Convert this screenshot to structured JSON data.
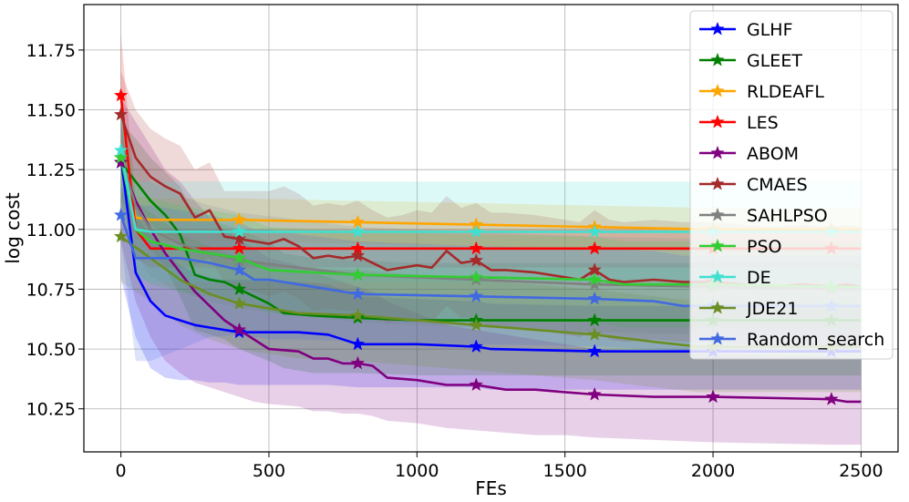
{
  "chart_data": {
    "type": "line",
    "title": "",
    "xlabel": "FEs",
    "ylabel": "log cost",
    "xlim": [
      -125,
      2625
    ],
    "ylim": [
      10.07,
      11.94
    ],
    "xticks": [
      0,
      500,
      1000,
      1500,
      2000,
      2500
    ],
    "yticks": [
      10.25,
      10.5,
      10.75,
      11.0,
      11.25,
      11.5,
      11.75
    ],
    "xtick_labels": [
      "0",
      "500",
      "1000",
      "1500",
      "2000",
      "2500"
    ],
    "ytick_labels": [
      "10.25",
      "10.50",
      "10.75",
      "11.00",
      "11.25",
      "11.50",
      "11.75"
    ],
    "grid": true,
    "legend_position": "top-right",
    "marker": "star",
    "marker_x": [
      0,
      400,
      800,
      1200,
      1600,
      2000,
      2400
    ],
    "series": [
      {
        "name": "GLHF",
        "color": "#0000ff",
        "x": [
          0,
          50,
          100,
          150,
          200,
          250,
          300,
          350,
          400,
          500,
          600,
          700,
          800,
          1000,
          1200,
          1250,
          1600,
          2000,
          2400,
          2500
        ],
        "values": [
          11.3,
          10.82,
          10.7,
          10.64,
          10.62,
          10.6,
          10.59,
          10.58,
          10.57,
          10.57,
          10.57,
          10.56,
          10.52,
          10.52,
          10.51,
          10.5,
          10.49,
          10.49,
          10.49,
          10.49
        ],
        "lower": [
          10.8,
          10.55,
          10.42,
          10.38,
          10.37,
          10.37,
          10.36,
          10.36,
          10.35,
          10.35,
          10.35,
          10.35,
          10.34,
          10.34,
          10.34,
          10.33,
          10.33,
          10.33,
          10.33,
          10.33
        ],
        "upper": [
          11.45,
          11.05,
          10.98,
          10.9,
          10.85,
          10.82,
          10.8,
          10.79,
          10.79,
          10.79,
          10.78,
          10.77,
          10.72,
          10.71,
          10.7,
          10.69,
          10.68,
          10.68,
          10.68,
          10.68
        ]
      },
      {
        "name": "GLEET",
        "color": "#008000",
        "x": [
          0,
          50,
          100,
          150,
          200,
          250,
          300,
          350,
          400,
          500,
          550,
          650,
          800,
          1000,
          1200,
          1600,
          2000,
          2400,
          2500
        ],
        "values": [
          11.28,
          11.2,
          11.12,
          11.06,
          10.98,
          10.81,
          10.79,
          10.78,
          10.75,
          10.69,
          10.65,
          10.64,
          10.63,
          10.62,
          10.62,
          10.62,
          10.62,
          10.62,
          10.62
        ],
        "lower": [
          11.12,
          11.02,
          10.92,
          10.84,
          10.72,
          10.58,
          10.56,
          10.54,
          10.5,
          10.45,
          10.42,
          10.4,
          10.4,
          10.39,
          10.39,
          10.39,
          10.39,
          10.39,
          10.39
        ],
        "upper": [
          11.45,
          11.38,
          11.3,
          11.24,
          11.18,
          11.06,
          11.04,
          11.02,
          11.0,
          10.95,
          10.9,
          10.88,
          10.87,
          10.86,
          10.86,
          10.86,
          10.86,
          10.86,
          10.86
        ]
      },
      {
        "name": "RLDEAFL",
        "color": "#ffa500",
        "x": [
          0,
          50,
          100,
          400,
          800,
          1200,
          1600,
          2000,
          2400,
          2500
        ],
        "values": [
          11.3,
          11.05,
          11.04,
          11.04,
          11.03,
          11.02,
          11.01,
          11.0,
          11.0,
          11.0
        ],
        "lower": [
          11.2,
          10.96,
          10.95,
          10.95,
          10.94,
          10.93,
          10.92,
          10.91,
          10.91,
          10.91
        ],
        "upper": [
          11.4,
          11.14,
          11.13,
          11.13,
          11.12,
          11.11,
          11.1,
          11.09,
          11.09,
          11.09
        ]
      },
      {
        "name": "LES",
        "color": "#ff0000",
        "x": [
          0,
          50,
          100,
          150,
          400,
          800,
          1200,
          1600,
          2000,
          2400,
          2500
        ],
        "values": [
          11.56,
          11.0,
          10.92,
          10.92,
          10.92,
          10.92,
          10.92,
          10.92,
          10.92,
          10.92,
          10.92
        ],
        "lower": [
          11.3,
          10.88,
          10.84,
          10.84,
          10.84,
          10.84,
          10.84,
          10.84,
          10.84,
          10.84,
          10.84
        ],
        "upper": [
          11.82,
          11.12,
          11.0,
          11.0,
          11.0,
          11.0,
          11.0,
          11.0,
          11.0,
          11.0,
          11.0
        ]
      },
      {
        "name": "ABOM",
        "color": "#800080",
        "x": [
          0,
          50,
          100,
          150,
          200,
          250,
          300,
          350,
          400,
          450,
          500,
          600,
          650,
          700,
          750,
          800,
          850,
          900,
          1000,
          1100,
          1200,
          1300,
          1400,
          1500,
          1600,
          1800,
          2000,
          2400,
          2450,
          2500
        ],
        "values": [
          11.28,
          11.12,
          11.0,
          10.9,
          10.82,
          10.74,
          10.68,
          10.62,
          10.58,
          10.54,
          10.5,
          10.49,
          10.46,
          10.46,
          10.44,
          10.44,
          10.43,
          10.38,
          10.37,
          10.35,
          10.35,
          10.33,
          10.33,
          10.32,
          10.31,
          10.3,
          10.3,
          10.29,
          10.28,
          10.28
        ],
        "lower": [
          10.95,
          10.7,
          10.55,
          10.45,
          10.4,
          10.36,
          10.34,
          10.32,
          10.3,
          10.28,
          10.27,
          10.26,
          10.24,
          10.24,
          10.23,
          10.23,
          10.22,
          10.2,
          10.19,
          10.17,
          10.16,
          10.15,
          10.14,
          10.14,
          10.13,
          10.12,
          10.11,
          10.1,
          10.1,
          10.1
        ],
        "upper": [
          11.55,
          11.45,
          11.35,
          11.25,
          11.2,
          11.12,
          11.05,
          11.0,
          10.96,
          10.92,
          10.88,
          10.85,
          10.82,
          10.8,
          10.78,
          10.76,
          10.74,
          10.7,
          10.65,
          10.6,
          10.58,
          10.56,
          10.54,
          10.52,
          10.5,
          10.49,
          10.48,
          10.47,
          10.46,
          10.46
        ]
      },
      {
        "name": "CMAES",
        "color": "#a52a2a",
        "x": [
          0,
          50,
          100,
          150,
          200,
          250,
          300,
          350,
          400,
          450,
          500,
          550,
          600,
          650,
          700,
          750,
          800,
          850,
          900,
          950,
          1000,
          1050,
          1100,
          1150,
          1200,
          1250,
          1300,
          1400,
          1500,
          1550,
          1600,
          1650,
          1700,
          1800,
          1900,
          2000,
          2100,
          2200,
          2300,
          2400,
          2450,
          2500
        ],
        "values": [
          11.48,
          11.3,
          11.22,
          11.18,
          11.15,
          11.05,
          11.08,
          10.97,
          10.96,
          10.95,
          10.94,
          10.96,
          10.93,
          10.88,
          10.89,
          10.88,
          10.89,
          10.86,
          10.83,
          10.84,
          10.85,
          10.84,
          10.91,
          10.86,
          10.87,
          10.83,
          10.83,
          10.82,
          10.8,
          10.79,
          10.83,
          10.79,
          10.78,
          10.79,
          10.78,
          10.78,
          10.77,
          10.76,
          10.77,
          10.76,
          10.77,
          10.76
        ],
        "lower": [
          11.3,
          11.1,
          11.02,
          10.98,
          10.95,
          10.85,
          10.88,
          10.78,
          10.76,
          10.74,
          10.72,
          10.74,
          10.71,
          10.66,
          10.67,
          10.66,
          10.66,
          10.64,
          10.61,
          10.62,
          10.62,
          10.61,
          10.68,
          10.63,
          10.63,
          10.59,
          10.59,
          10.58,
          10.56,
          10.55,
          10.58,
          10.54,
          10.53,
          10.54,
          10.53,
          10.53,
          10.52,
          10.51,
          10.52,
          10.51,
          10.52,
          10.51
        ],
        "upper": [
          11.66,
          11.5,
          11.42,
          11.38,
          11.35,
          11.25,
          11.28,
          11.16,
          11.16,
          11.16,
          11.16,
          11.18,
          11.15,
          11.1,
          11.11,
          11.1,
          11.12,
          11.08,
          11.05,
          11.06,
          11.08,
          11.07,
          11.14,
          11.09,
          11.11,
          11.07,
          11.07,
          11.06,
          11.04,
          11.03,
          11.08,
          11.04,
          11.03,
          11.04,
          11.03,
          11.03,
          11.02,
          11.01,
          11.02,
          11.01,
          11.02,
          11.01
        ]
      },
      {
        "name": "SAHLPSO",
        "color": "#808080",
        "x": [
          0,
          50,
          100,
          200,
          300,
          400,
          600,
          800,
          1200,
          1600,
          2000,
          2400,
          2500
        ],
        "values": [
          11.3,
          11.1,
          11.0,
          10.94,
          10.9,
          10.87,
          10.84,
          10.81,
          10.79,
          10.77,
          10.76,
          10.75,
          10.75
        ],
        "lower": [
          11.1,
          10.9,
          10.8,
          10.74,
          10.7,
          10.67,
          10.64,
          10.61,
          10.59,
          10.57,
          10.56,
          10.55,
          10.55
        ],
        "upper": [
          11.5,
          11.3,
          11.2,
          11.14,
          11.1,
          11.07,
          11.04,
          11.01,
          10.99,
          10.97,
          10.96,
          10.95,
          10.95
        ]
      },
      {
        "name": "PSO",
        "color": "#32cd32",
        "x": [
          0,
          50,
          100,
          200,
          300,
          400,
          500,
          800,
          1200,
          1600,
          1700,
          2000,
          2400,
          2500
        ],
        "values": [
          11.3,
          11.0,
          10.95,
          10.92,
          10.9,
          10.88,
          10.83,
          10.81,
          10.8,
          10.79,
          10.77,
          10.77,
          10.76,
          10.76
        ],
        "lower": [
          11.1,
          10.82,
          10.77,
          10.74,
          10.72,
          10.7,
          10.65,
          10.63,
          10.62,
          10.61,
          10.59,
          10.59,
          10.58,
          10.58
        ],
        "upper": [
          11.5,
          11.18,
          11.13,
          11.1,
          11.08,
          11.06,
          11.01,
          10.99,
          10.98,
          10.97,
          10.95,
          10.95,
          10.94,
          10.94
        ]
      },
      {
        "name": "DE",
        "color": "#40e0d0",
        "x": [
          0,
          50,
          100,
          400,
          800,
          1200,
          1600,
          2000,
          2400,
          2500
        ],
        "values": [
          11.33,
          11.0,
          10.99,
          10.99,
          10.99,
          10.99,
          10.99,
          10.99,
          10.99,
          10.99
        ],
        "lower": [
          11.2,
          10.8,
          10.78,
          10.78,
          10.78,
          10.78,
          10.78,
          10.78,
          10.78,
          10.78
        ],
        "upper": [
          11.46,
          11.2,
          11.2,
          11.2,
          11.2,
          11.2,
          11.2,
          11.2,
          11.2,
          11.2
        ]
      },
      {
        "name": "JDE21",
        "color": "#6b8e23",
        "x": [
          0,
          100,
          200,
          300,
          400,
          600,
          800,
          1000,
          1200,
          1400,
          1600,
          1800,
          1950,
          2000,
          2200,
          2400,
          2500
        ],
        "values": [
          10.97,
          10.88,
          10.79,
          10.73,
          10.69,
          10.65,
          10.64,
          10.62,
          10.6,
          10.58,
          10.56,
          10.53,
          10.51,
          10.51,
          10.51,
          10.51,
          10.51
        ],
        "lower": [
          10.78,
          10.7,
          10.6,
          10.54,
          10.5,
          10.46,
          10.45,
          10.43,
          10.41,
          10.39,
          10.37,
          10.34,
          10.32,
          10.32,
          10.32,
          10.32,
          10.32
        ],
        "upper": [
          11.16,
          11.07,
          10.98,
          10.93,
          10.88,
          10.84,
          10.83,
          10.81,
          10.79,
          10.77,
          10.75,
          10.72,
          10.7,
          10.7,
          10.7,
          10.7,
          10.7
        ]
      },
      {
        "name": "Random_search",
        "color": "#4169e1",
        "x": [
          0,
          50,
          100,
          200,
          300,
          400,
          450,
          500,
          600,
          800,
          1200,
          1600,
          1800,
          1900,
          2000,
          2400,
          2500
        ],
        "values": [
          11.06,
          10.88,
          10.88,
          10.88,
          10.86,
          10.83,
          10.79,
          10.79,
          10.77,
          10.73,
          10.72,
          10.71,
          10.7,
          10.68,
          10.68,
          10.68,
          10.68
        ],
        "lower": [
          10.95,
          10.45,
          10.45,
          10.5,
          10.55,
          10.56,
          10.55,
          10.54,
          10.54,
          10.53,
          10.52,
          10.51,
          10.5,
          10.49,
          10.49,
          10.49,
          10.49
        ],
        "upper": [
          11.18,
          11.1,
          11.1,
          11.08,
          11.06,
          11.03,
          11.0,
          11.0,
          10.98,
          10.95,
          10.93,
          10.92,
          10.91,
          10.89,
          10.89,
          10.89,
          10.89
        ]
      }
    ]
  }
}
